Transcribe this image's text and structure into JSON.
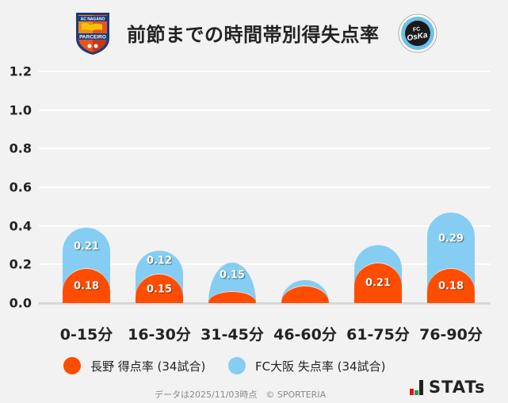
{
  "header": {
    "title": "前節までの時間帯別得失点率",
    "left_logo": {
      "name": "AC NAGANO PARCEIRO",
      "top_text": "AC NAGANO",
      "bottom_text": "PARCEIRO"
    },
    "right_logo": {
      "name": "FC OSAKA",
      "text": "FC OSAKA"
    }
  },
  "colors": {
    "orange": "#ff4d00",
    "blue": "#85cdf2",
    "background": "#f2f2f2"
  },
  "y_ticks": [
    "1.2",
    "1.0",
    "0.8",
    "0.6",
    "0.4",
    "0.2",
    "0.0"
  ],
  "x_labels": [
    "0-15分",
    "16-30分",
    "31-45分",
    "46-60分",
    "61-75分",
    "76-90分"
  ],
  "bars": [
    {
      "orange_label": "0.18",
      "blue_label": "0.21"
    },
    {
      "orange_label": "0.15",
      "blue_label": "0.12"
    },
    {
      "orange_label": "",
      "blue_label": "0.15"
    },
    {
      "orange_label": "",
      "blue_label": ""
    },
    {
      "orange_label": "0.21",
      "blue_label": ""
    },
    {
      "orange_label": "0.18",
      "blue_label": "0.29"
    }
  ],
  "legend": [
    {
      "label": "長野 得点率 (34試合)",
      "color": "#ff4d00"
    },
    {
      "label": "FC大阪 失点率 (34試合)",
      "color": "#85cdf2"
    }
  ],
  "footer": {
    "text": "データは2025/11/03時点　© SPORTERIA",
    "brand": "STATs"
  },
  "chart_data": {
    "type": "bar",
    "stacked": true,
    "title": "前節までの時間帯別得失点率",
    "categories": [
      "0-15分",
      "16-30分",
      "31-45分",
      "46-60分",
      "61-75分",
      "76-90分"
    ],
    "series": [
      {
        "name": "長野 得点率 (34試合)",
        "color": "#ff4d00",
        "values": [
          0.18,
          0.15,
          0.06,
          0.09,
          0.21,
          0.18
        ]
      },
      {
        "name": "FC大阪 失点率 (34試合)",
        "color": "#85cdf2",
        "values": [
          0.21,
          0.12,
          0.15,
          0.03,
          0.09,
          0.29
        ]
      }
    ],
    "xlabel": "",
    "ylabel": "",
    "ylim": [
      0,
      1.2
    ],
    "yticks": [
      0.0,
      0.2,
      0.4,
      0.6,
      0.8,
      1.0,
      1.2
    ],
    "grid": true,
    "legend_position": "bottom"
  }
}
